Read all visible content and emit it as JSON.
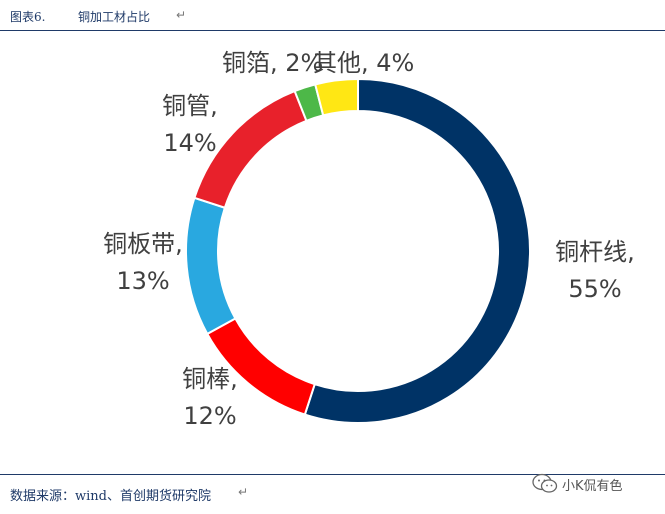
{
  "header": {
    "figure_number": "图表6.",
    "title": "铜加工材占比",
    "paragraph_mark": "↵"
  },
  "footer": {
    "source": "数据来源：wind、首创期货研究院",
    "paragraph_mark": "↵"
  },
  "watermark": {
    "text": "小K侃有色",
    "icon": "wechat-icon"
  },
  "chart_data": {
    "type": "pie",
    "style": "donut",
    "title": "铜加工材占比",
    "legend": "none",
    "slices": [
      {
        "name": "铜杆线",
        "value": 55,
        "label": "55%",
        "color": "#003366"
      },
      {
        "name": "铜棒",
        "value": 12,
        "label": "12%",
        "color": "#ff0000"
      },
      {
        "name": "铜板带",
        "value": 13,
        "label": "13%",
        "color": "#29a8e0"
      },
      {
        "name": "铜管",
        "value": 14,
        "label": "14%",
        "color": "#e8212b"
      },
      {
        "name": "铜箔",
        "value": 2,
        "label": "2%",
        "color": "#4db848"
      },
      {
        "name": "其他",
        "value": 4,
        "label": "4%",
        "color": "#ffe714"
      }
    ]
  }
}
